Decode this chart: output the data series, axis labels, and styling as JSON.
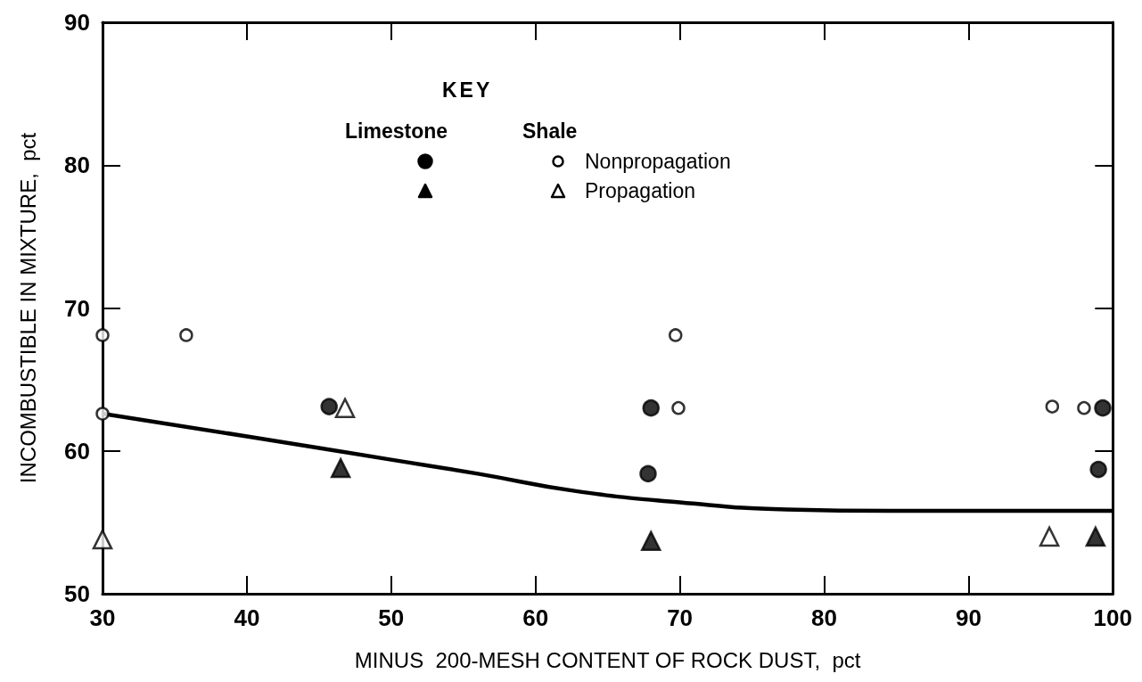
{
  "chart_data": {
    "type": "scatter",
    "xlabel": "MINUS  200-MESH CONTENT OF ROCK DUST,  pct",
    "ylabel": "INCOMBUSTIBLE IN MIXTURE,  pct",
    "xlim": [
      30,
      100
    ],
    "ylim": [
      50,
      90
    ],
    "xticks": [
      30,
      40,
      50,
      60,
      70,
      80,
      90,
      100
    ],
    "yticks": [
      50,
      60,
      70,
      80,
      90
    ],
    "grid": false,
    "legend_title": "KEY",
    "annotations": [
      "Limestone",
      "Shale",
      "Nonpropagation",
      "Propagation"
    ],
    "series": [
      {
        "color": "#000000",
        "marker": "circle",
        "x": [
          45.7,
          68.0,
          67.8,
          99.3,
          99.0
        ],
        "values": [
          63.1,
          63.0,
          58.4,
          63.0,
          58.7
        ]
      },
      {
        "color": "#ffffff",
        "marker": "circle",
        "x": [
          30,
          30,
          35.8,
          69.7,
          69.9,
          95.8,
          98.0
        ],
        "values": [
          68.1,
          62.6,
          68.1,
          68.1,
          63.0,
          63.1,
          63.0
        ]
      },
      {
        "color": "#000000",
        "marker": "triangle",
        "x": [
          46.5,
          68.0,
          98.8
        ],
        "values": [
          58.8,
          53.7,
          54.0
        ]
      },
      {
        "color": "#ffffff",
        "marker": "triangle",
        "x": [
          30,
          46.8,
          95.6
        ],
        "values": [
          53.8,
          63.0,
          54.0
        ]
      },
      {
        "type": "line",
        "color": "#000000",
        "marker": "none",
        "x": [
          30,
          40.1,
          49.9,
          56.0,
          62.7,
          70.0,
          77.4,
          84.7,
          100
        ],
        "values": [
          62.6,
          61.0,
          59.4,
          58.4,
          57.2,
          56.4,
          55.9,
          55.8,
          55.8
        ]
      }
    ]
  }
}
